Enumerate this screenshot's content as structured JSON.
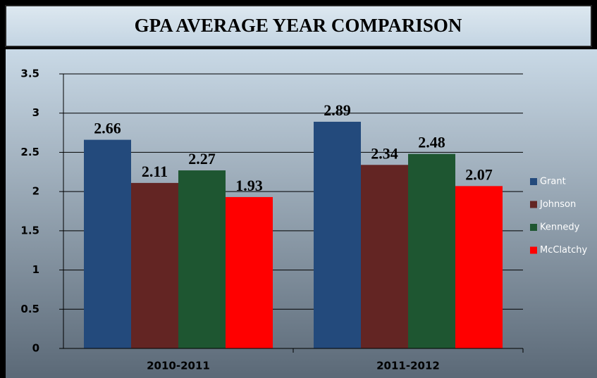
{
  "chart_data": {
    "type": "bar",
    "title": "GPA AVERAGE YEAR COMPARISON",
    "categories": [
      "2010-2011",
      "2011-2012"
    ],
    "series": [
      {
        "name": "Grant",
        "color": "#234a7c",
        "values": [
          2.66,
          2.89
        ]
      },
      {
        "name": "Johnson",
        "color": "#632523",
        "values": [
          2.11,
          2.34
        ]
      },
      {
        "name": "Kennedy",
        "color": "#1e5631",
        "values": [
          2.27,
          2.48
        ]
      },
      {
        "name": "McClatchy",
        "color": "#ff0000",
        "values": [
          1.93,
          2.07
        ]
      }
    ],
    "ylim": [
      0,
      3.5
    ],
    "yticks": [
      0,
      0.5,
      1,
      1.5,
      2,
      2.5,
      3,
      3.5
    ],
    "grid": true,
    "legend": "right"
  }
}
